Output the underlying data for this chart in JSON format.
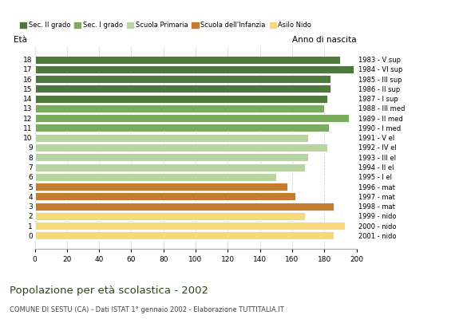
{
  "ages": [
    18,
    17,
    16,
    15,
    14,
    13,
    12,
    11,
    10,
    9,
    8,
    7,
    6,
    5,
    4,
    3,
    2,
    1,
    0
  ],
  "years": [
    "1983 - V sup",
    "1984 - VI sup",
    "1985 - III sup",
    "1986 - II sup",
    "1987 - I sup",
    "1988 - III med",
    "1989 - II med",
    "1990 - I med",
    "1991 - V el",
    "1992 - IV el",
    "1993 - III el",
    "1994 - II el",
    "1995 - I el",
    "1996 - mat",
    "1997 - mat",
    "1998 - mat",
    "1999 - nido",
    "2000 - nido",
    "2001 - nido"
  ],
  "values": [
    190,
    198,
    184,
    184,
    182,
    180,
    195,
    183,
    170,
    182,
    170,
    168,
    150,
    157,
    162,
    186,
    168,
    193,
    186
  ],
  "colors": [
    "#4d7a3a",
    "#4d7a3a",
    "#4d7a3a",
    "#4d7a3a",
    "#4d7a3a",
    "#7aab5e",
    "#7aab5e",
    "#7aab5e",
    "#b8d4a0",
    "#b8d4a0",
    "#b8d4a0",
    "#b8d4a0",
    "#b8d4a0",
    "#c47d2e",
    "#c47d2e",
    "#c47d2e",
    "#f5d97a",
    "#f5d97a",
    "#f5d97a"
  ],
  "legend_labels": [
    "Sec. II grado",
    "Sec. I grado",
    "Scuola Primaria",
    "Scuola dell'Infanzia",
    "Asilo Nido"
  ],
  "legend_colors": [
    "#4d7a3a",
    "#7aab5e",
    "#b8d4a0",
    "#c47d2e",
    "#f5d97a"
  ],
  "title": "Popolazione per età scolastica - 2002",
  "subtitle": "COMUNE DI SESTU (CA) - Dati ISTAT 1° gennaio 2002 - Elaborazione TUTTITALIA.IT",
  "xlabel_eta": "Età",
  "xlabel_anno": "Anno di nascita",
  "xlim": [
    0,
    200
  ],
  "xticks": [
    0,
    20,
    40,
    60,
    80,
    100,
    120,
    140,
    160,
    180,
    200
  ],
  "background_color": "#ffffff",
  "grid_color": "#c8c8c8"
}
